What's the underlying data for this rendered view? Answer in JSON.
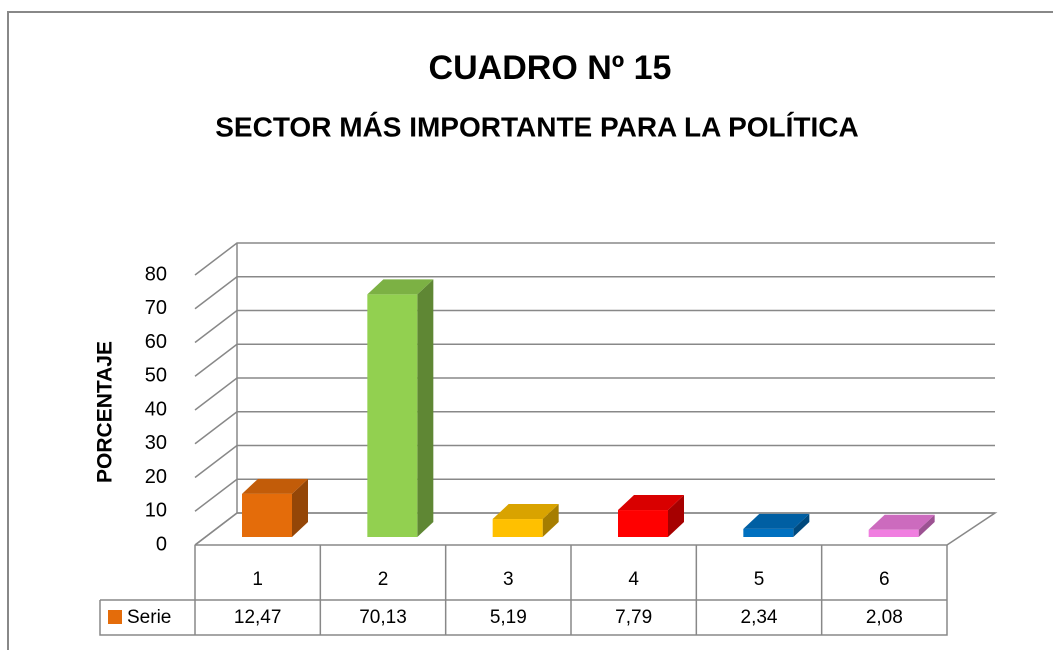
{
  "chart_data": {
    "type": "bar3d",
    "title": "CUADRO Nº 15",
    "subtitle": "SECTOR MÁS IMPORTANTE PARA LA POLÍTICA",
    "y_label": "PORCENTAJE",
    "categories": [
      "1",
      "2",
      "3",
      "4",
      "5",
      "6"
    ],
    "series": [
      {
        "name": "Serie",
        "values": [
          12.47,
          70.13,
          5.19,
          7.79,
          2.34,
          2.08
        ],
        "value_labels": [
          "12,47",
          "70,13",
          "5,19",
          "7,79",
          "2,34",
          "2,08"
        ],
        "colors": [
          "#e46c0a",
          "#92d050",
          "#ffc000",
          "#ff0000",
          "#0070c0",
          "#f07ee0"
        ]
      }
    ],
    "ylim": [
      0,
      80
    ],
    "yticks": [
      0,
      10,
      20,
      30,
      40,
      50,
      60,
      70,
      80
    ],
    "grid": true
  }
}
